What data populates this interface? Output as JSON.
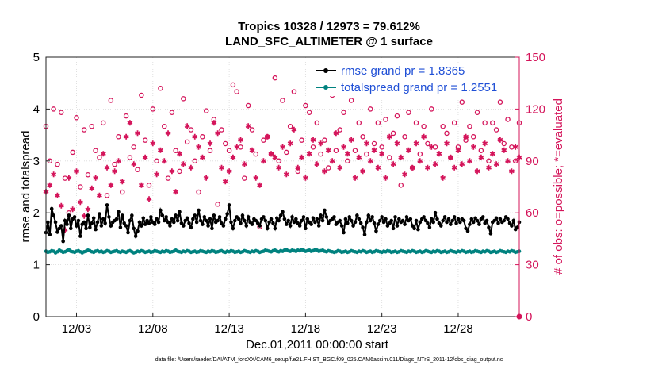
{
  "title_line1": "Tropics 10328 / 12973 = 79.612%",
  "title_line2": "LAND_SFC_ALTIMETER @ 1 surface",
  "footnote": "data file: /Users/raeder/DAI/ATM_forcXX/CAM6_setup/f.e21.FHIST_BGC.f09_025.CAM6assim.011/Diags_NTrS_2011-12/obs_diag_output.nc",
  "chart_data": {
    "type": "line",
    "xlabel": "Dec.01,2011 00:00:00 start",
    "ylabel_left": "rmse and totalspread",
    "ylabel_right": "# of obs: o=possible; *=evaluated",
    "xlim": [
      1,
      32
    ],
    "ylim_left": [
      0,
      5
    ],
    "ylim_right": [
      0,
      150
    ],
    "x_ticks": [
      3,
      8,
      13,
      18,
      23,
      28
    ],
    "x_tick_labels": [
      "12/03",
      "12/08",
      "12/13",
      "12/18",
      "12/23",
      "12/28"
    ],
    "y_ticks_left": [
      0,
      1,
      2,
      3,
      4,
      5
    ],
    "y_ticks_right": [
      0,
      30,
      60,
      90,
      120,
      150
    ],
    "grid": true,
    "legend_position": "top-right",
    "colors": {
      "rmse": "#000000",
      "spread": "#00827f",
      "obs": "#d4145a"
    },
    "series": [
      {
        "name": "rmse grand pr = 1.8365",
        "axis": "left",
        "start": 1.0,
        "step": 0.125,
        "values": [
          1.62,
          1.82,
          1.58,
          2.08,
          1.95,
          1.82,
          1.63,
          1.7,
          1.75,
          1.45,
          1.85,
          1.78,
          1.95,
          1.7,
          1.88,
          1.92,
          1.75,
          1.85,
          1.55,
          1.78,
          1.82,
          1.7,
          1.95,
          1.72,
          1.8,
          1.9,
          1.68,
          1.82,
          1.98,
          1.75,
          1.88,
          1.8,
          2.15,
          1.92,
          1.75,
          1.82,
          1.85,
          1.88,
          2.02,
          1.72,
          1.95,
          1.8,
          1.75,
          1.62,
          1.85,
          1.95,
          1.7,
          1.55,
          1.65,
          1.82,
          1.75,
          1.9,
          1.78,
          1.85,
          1.8,
          1.92,
          1.82,
          1.78,
          1.88,
          1.82,
          2.05,
          1.95,
          1.85,
          1.92,
          1.82,
          1.75,
          1.88,
          1.82,
          1.95,
          1.85,
          2.02,
          1.8,
          1.75,
          1.85,
          1.9,
          1.8,
          1.72,
          1.88,
          1.95,
          1.82,
          2.05,
          1.85,
          1.78,
          1.92,
          1.85,
          1.75,
          1.88,
          1.7,
          1.95,
          1.82,
          1.85,
          1.92,
          1.8,
          1.75,
          1.88,
          1.98,
          2.15,
          1.82,
          1.7,
          1.85,
          1.92,
          1.88,
          1.8,
          1.95,
          1.85,
          1.75,
          1.92,
          1.82,
          1.78,
          1.88,
          1.85,
          1.8,
          1.75,
          1.88,
          1.92,
          1.85,
          1.7,
          1.82,
          1.88,
          1.8,
          1.7,
          1.9,
          1.85,
          1.95,
          2.02,
          1.88,
          1.78,
          1.85,
          1.75,
          1.92,
          1.82,
          1.88,
          1.8,
          1.75,
          1.85,
          1.92,
          1.7,
          1.88,
          1.82,
          1.78,
          1.9,
          1.82,
          1.88,
          1.75,
          1.95,
          1.85,
          2.05,
          1.92,
          1.8,
          1.85,
          1.88,
          1.92,
          1.78,
          1.82,
          1.85,
          1.75,
          1.62,
          1.88,
          1.8,
          1.92,
          1.85,
          1.75,
          1.82,
          1.95,
          1.88,
          1.8,
          1.72,
          1.58,
          1.82,
          1.95,
          1.85,
          1.92,
          1.8,
          1.65,
          1.78,
          1.85,
          1.92,
          1.82,
          1.88,
          1.75,
          1.8,
          1.85,
          1.7,
          1.92,
          1.75,
          1.88,
          1.82,
          1.85,
          1.78,
          1.92,
          1.85,
          1.88,
          1.75,
          1.7,
          1.85,
          1.68,
          1.82,
          1.88,
          1.92,
          1.85,
          1.8,
          1.72,
          1.88,
          1.82,
          2.0,
          1.88,
          1.8,
          1.75,
          1.85,
          1.92,
          1.82,
          1.88,
          1.78,
          1.85,
          1.92,
          1.8,
          1.88,
          1.82,
          1.88,
          1.85,
          1.7,
          1.65,
          1.78,
          1.88,
          1.82,
          1.9,
          1.85,
          1.78,
          1.88,
          1.92,
          1.8,
          1.85,
          1.72,
          1.6,
          1.82,
          1.85,
          1.9,
          1.8,
          1.88,
          1.82,
          1.85,
          1.92,
          1.88,
          1.8,
          1.75,
          1.85,
          1.68,
          1.72,
          1.82,
          1.92,
          1.85,
          1.8,
          1.88,
          1.85,
          1.9,
          1.78,
          1.82,
          1.88,
          1.85,
          1.9,
          1.8,
          1.75,
          1.85,
          1.88,
          1.78,
          1.6,
          1.82,
          1.88,
          1.85,
          1.92,
          1.8,
          1.88,
          1.82,
          1.85,
          1.7,
          1.75,
          1.88,
          1.92,
          1.85,
          1.82,
          1.78,
          1.88,
          1.85,
          1.92,
          1.8,
          1.85,
          1.88,
          1.82,
          1.7,
          1.65,
          1.88,
          1.85,
          1.8,
          1.92,
          1.88,
          1.85,
          1.75,
          1.82,
          1.88,
          1.92,
          1.85,
          1.8,
          1.88,
          1.85,
          1.82,
          1.78,
          1.88,
          1.92,
          1.85,
          1.8,
          1.88,
          1.85,
          1.82,
          1.8,
          1.9,
          1.85,
          1.88,
          1.8,
          1.85,
          1.9,
          1.88,
          1.82,
          1.85,
          1.88,
          1.92,
          1.85,
          1.8,
          1.88,
          1.82,
          1.85,
          1.9,
          1.88,
          1.82,
          1.85,
          1.88,
          1.8,
          1.85,
          1.88,
          1.92,
          1.85,
          1.8,
          1.88,
          1.85,
          1.9,
          1.88,
          1.82,
          1.85,
          1.88,
          1.8,
          1.85,
          1.9,
          1.88,
          1.82,
          1.85,
          1.88,
          1.92,
          1.85,
          1.8,
          1.88,
          1.85,
          1.82,
          1.88,
          1.85,
          1.9,
          1.88,
          1.82,
          1.85,
          1.88,
          1.8,
          1.85,
          1.88,
          1.92,
          1.85,
          1.8,
          1.88,
          1.85,
          1.82,
          1.88,
          1.85,
          1.9,
          1.88,
          1.82,
          1.85,
          1.88,
          1.8,
          1.85,
          1.88,
          1.92,
          1.85,
          1.8,
          1.88,
          1.85,
          1.82,
          1.88,
          1.85,
          1.9,
          1.88,
          1.82,
          1.85,
          1.88,
          1.8,
          1.85,
          1.88,
          1.92,
          1.85,
          1.8,
          1.88,
          1.85,
          1.82,
          1.88,
          1.85,
          1.9,
          1.88
        ]
      },
      {
        "name": "totalspread grand pr = 1.2551",
        "axis": "left",
        "start": 1.0,
        "step": 0.125,
        "values": [
          1.26,
          1.24,
          1.25,
          1.27,
          1.26,
          1.23,
          1.25,
          1.28,
          1.26,
          1.24,
          1.25,
          1.27,
          1.29,
          1.26,
          1.25,
          1.24,
          1.26,
          1.27,
          1.25,
          1.23,
          1.25,
          1.26,
          1.28,
          1.27,
          1.25,
          1.24,
          1.26,
          1.27,
          1.25,
          1.26,
          1.24,
          1.25,
          1.27,
          1.26,
          1.24,
          1.25,
          1.26,
          1.27,
          1.25,
          1.24,
          1.26,
          1.25,
          1.24,
          1.26,
          1.27,
          1.25,
          1.23,
          1.24,
          1.26,
          1.25,
          1.27,
          1.26,
          1.24,
          1.25,
          1.26,
          1.24,
          1.25,
          1.27,
          1.26,
          1.25,
          1.24,
          1.26,
          1.25,
          1.27,
          1.26,
          1.24,
          1.25,
          1.26,
          1.28,
          1.26,
          1.25,
          1.24,
          1.26,
          1.25,
          1.27,
          1.26,
          1.24,
          1.25,
          1.26,
          1.24,
          1.25,
          1.27,
          1.26,
          1.25,
          1.24,
          1.26,
          1.25,
          1.27,
          1.26,
          1.24,
          1.25,
          1.26,
          1.27,
          1.25,
          1.24,
          1.26,
          1.25,
          1.27,
          1.26,
          1.24,
          1.25,
          1.26,
          1.24,
          1.25,
          1.27,
          1.26,
          1.25,
          1.24,
          1.26,
          1.25,
          1.27,
          1.26,
          1.24,
          1.25,
          1.26,
          1.28,
          1.27,
          1.26,
          1.25,
          1.27,
          1.28,
          1.26,
          1.25,
          1.27,
          1.26,
          1.28,
          1.29,
          1.27,
          1.26,
          1.28,
          1.27,
          1.26,
          1.28,
          1.27,
          1.29,
          1.28,
          1.26,
          1.27,
          1.28,
          1.26,
          1.27,
          1.29,
          1.28,
          1.26,
          1.27,
          1.28,
          1.26,
          1.25,
          1.27,
          1.26,
          1.25,
          1.24,
          1.25,
          1.27,
          1.26,
          1.24,
          1.25,
          1.26,
          1.24,
          1.25,
          1.27,
          1.26,
          1.25,
          1.24,
          1.26,
          1.25,
          1.27,
          1.26,
          1.24,
          1.25,
          1.26,
          1.24,
          1.25,
          1.27,
          1.26,
          1.25,
          1.24,
          1.26,
          1.25,
          1.27,
          1.26,
          1.24,
          1.25,
          1.26,
          1.24,
          1.25,
          1.27,
          1.26,
          1.25,
          1.24,
          1.26,
          1.25,
          1.27,
          1.26,
          1.24,
          1.25,
          1.26,
          1.24,
          1.25,
          1.27,
          1.26,
          1.25,
          1.24,
          1.26,
          1.25,
          1.27,
          1.26,
          1.24,
          1.25,
          1.26,
          1.24,
          1.25,
          1.27,
          1.26,
          1.25,
          1.24,
          1.26,
          1.25,
          1.27,
          1.26,
          1.24,
          1.25,
          1.26,
          1.24,
          1.25,
          1.27,
          1.26,
          1.25,
          1.24,
          1.26,
          1.25,
          1.27,
          1.26,
          1.24,
          1.25,
          1.26,
          1.24,
          1.25,
          1.27,
          1.26,
          1.25,
          1.24,
          1.26,
          1.25,
          1.27,
          1.26,
          1.24,
          1.25,
          1.26,
          1.24,
          1.25,
          1.27,
          1.26,
          1.25,
          1.24,
          1.26,
          1.25,
          1.27,
          1.26,
          1.24,
          1.25,
          1.26,
          1.24,
          1.25,
          1.27,
          1.26,
          1.25,
          1.24,
          1.26,
          1.25,
          1.27,
          1.26,
          1.24,
          1.25,
          1.26,
          1.24,
          1.25,
          1.27,
          1.26,
          1.25,
          1.24,
          1.26,
          1.25,
          1.27,
          1.26,
          1.24,
          1.25,
          1.26,
          1.24,
          1.25,
          1.27,
          1.26,
          1.25,
          1.24,
          1.26,
          1.25,
          1.27,
          1.26,
          1.28,
          1.29,
          1.3,
          1.31,
          1.3,
          1.29,
          1.31,
          1.3,
          1.29,
          1.31,
          1.3,
          1.29,
          1.3,
          1.31,
          1.29,
          1.3,
          1.31,
          1.3,
          1.29,
          1.3,
          1.31,
          1.3,
          1.29,
          1.3,
          1.31,
          1.29,
          1.3,
          1.28,
          1.27,
          1.26,
          1.25,
          1.27,
          1.26,
          1.24,
          1.25,
          1.26,
          1.24,
          1.25,
          1.27,
          1.26,
          1.25,
          1.24,
          1.26,
          1.25,
          1.27,
          1.26,
          1.24,
          1.25,
          1.26,
          1.24,
          1.25,
          1.27,
          1.26,
          1.25,
          1.24,
          1.26,
          1.25,
          1.27,
          1.26,
          1.24,
          1.25,
          1.26,
          1.24,
          1.25,
          1.27,
          1.26,
          1.25,
          1.24,
          1.26,
          1.25,
          1.27,
          1.26,
          1.24,
          1.25,
          1.26,
          1.24,
          1.25,
          1.27,
          1.26,
          1.25,
          1.24,
          1.26,
          1.25,
          1.27,
          1.26,
          1.24,
          1.25,
          1.26,
          1.24,
          1.25,
          1.27,
          1.26,
          1.25,
          1.24,
          1.26,
          1.25,
          1.27,
          1.26,
          1.24,
          1.25,
          1.26,
          1.24,
          1.25,
          1.27,
          1.26,
          1.25,
          1.24,
          1.26,
          1.25,
          1.27,
          1.26,
          1.24,
          1.25,
          1.26,
          1.24,
          1.25,
          1.27,
          1.26,
          1.25,
          1.24,
          1.26,
          1.25,
          1.27,
          1.26,
          1.24,
          1.25,
          1.26,
          1.24,
          1.25,
          1.27,
          1.26,
          1.25,
          1.24,
          1.26,
          1.25,
          1.27,
          1.26,
          1.24,
          1.25,
          1.26,
          1.24,
          1.25,
          1.27,
          1.26,
          1.25,
          1.24,
          1.26,
          1.25,
          1.27,
          1.26,
          1.24,
          1.25,
          1.26,
          1.24,
          1.25,
          1.27,
          1.26,
          1.25,
          1.24,
          1.22,
          1.19
        ]
      },
      {
        "name": "possible",
        "axis": "right",
        "marker": "o",
        "start": 1.0,
        "step": 0.25,
        "values": [
          110,
          90,
          120,
          88,
          118,
          80,
          60,
          95,
          115,
          75,
          108,
          82,
          110,
          96,
          92,
          112,
          70,
          125,
          88,
          104,
          72,
          116,
          92,
          98,
          85,
          128,
          102,
          76,
          120,
          90,
          132,
          110,
          80,
          118,
          96,
          84,
          126,
          101,
          108,
          90,
          72,
          104,
          119,
          96,
          114,
          65,
          108,
          100,
          96,
          134,
          130,
          98,
          80,
          122,
          108,
          94,
          52,
          102,
          104,
          94,
          138,
          90,
          125,
          95,
          110,
          130,
          84,
          102,
          122,
          118,
          98,
          112,
          94,
          102,
          86,
          128,
          96,
          108,
          118,
          90,
          125,
          96,
          112,
          104,
          94,
          120,
          100,
          112,
          98,
          114,
          92,
          106,
          116,
          76,
          104,
          118,
          86,
          112,
          94,
          110,
          100,
          120,
          98,
          132,
          110,
          106,
          92,
          112,
          98,
          124,
          102,
          110,
          104,
          118,
          96,
          112,
          90,
          112,
          108,
          124,
          100,
          114,
          98,
          90,
          112,
          98,
          108,
          96,
          112
        ]
      },
      {
        "name": "evaluated",
        "axis": "right",
        "marker": "*",
        "start": 1.0,
        "step": 0.25,
        "values": [
          72,
          76,
          82,
          70,
          64,
          50,
          80,
          62,
          84,
          66,
          58,
          62,
          74,
          80,
          70,
          94,
          86,
          76,
          84,
          90,
          78,
          104,
          112,
          88,
          106,
          76,
          92,
          68,
          100,
          82,
          96,
          90,
          106,
          84,
          72,
          94,
          88,
          110,
          86,
          104,
          98,
          92,
          80,
          100,
          112,
          106,
          86,
          78,
          84,
          92,
          98,
          102,
          88,
          110,
          96,
          80,
          76,
          90,
          104,
          94,
          92,
          86,
          98,
          82,
          100,
          108,
          86,
          92,
          80,
          94,
          102,
          88,
          100,
          84,
          96,
          90,
          106,
          86,
          98,
          94,
          102,
          80,
          92,
          84,
          100,
          90,
          96,
          86,
          94,
          80,
          104,
          88,
          100,
          92,
          82,
          96,
          86,
          100,
          90,
          104,
          86,
          98,
          88,
          94,
          80,
          100,
          92,
          86,
          96,
          88,
          104,
          90,
          98,
          84,
          92,
          100,
          86,
          94,
          88,
          102,
          96,
          90,
          84,
          98,
          92,
          80,
          100,
          88,
          76
        ]
      }
    ]
  }
}
